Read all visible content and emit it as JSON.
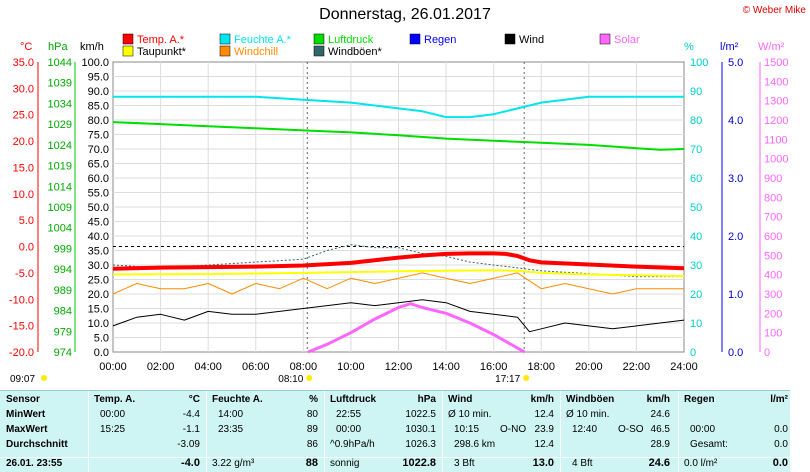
{
  "header": {
    "title": "Donnerstag, 26.01.2017",
    "copyright": "© Weber Mike"
  },
  "colors": {
    "temp": "#ff0000",
    "feuchte": "#00e5ee",
    "luftdruck": "#00dd00",
    "regen": "#0000ff",
    "wind": "#000000",
    "solar": "#ff66ff",
    "taupunkt": "#ffff00",
    "windchill": "#ff8c00",
    "windboeen": "#336666"
  },
  "legend": [
    {
      "key": "temp",
      "label": "Temp. A.*"
    },
    {
      "key": "feuchte",
      "label": "Feuchte A.*"
    },
    {
      "key": "luftdruck",
      "label": "Luftdruck"
    },
    {
      "key": "regen",
      "label": "Regen"
    },
    {
      "key": "wind",
      "label": "Wind"
    },
    {
      "key": "solar",
      "label": "Solar"
    },
    {
      "key": "taupunkt",
      "label": "Taupunkt*"
    },
    {
      "key": "windchill",
      "label": "Windchill"
    },
    {
      "key": "windboeen",
      "label": "Windböen*"
    }
  ],
  "axes": {
    "unit_c": "°C",
    "unit_hpa": "hPa",
    "unit_kmh": "km/h",
    "unit_pct": "%",
    "unit_lm2": "l/m²",
    "unit_wm2": "W/m²",
    "ticks_c": [
      "35.0",
      "30.0",
      "25.0",
      "20.0",
      "15.0",
      "10.0",
      "5.0",
      "0.0",
      "-5.0",
      "-10.0",
      "-15.0",
      "-20.0"
    ],
    "ticks_hpa": [
      "1044",
      "1039",
      "1034",
      "1029",
      "1024",
      "1019",
      "1014",
      "1009",
      "1004",
      "999",
      "994",
      "989",
      "984",
      "979",
      "974"
    ],
    "ticks_kmh": [
      "100.0",
      "95.0",
      "90.0",
      "85.0",
      "80.0",
      "75.0",
      "70.0",
      "65.0",
      "60.0",
      "55.0",
      "50.0",
      "45.0",
      "40.0",
      "35.0",
      "30.0",
      "25.0",
      "20.0",
      "15.0",
      "10.0",
      "5.0",
      "0.0"
    ],
    "ticks_pct": [
      "100",
      "90",
      "80",
      "70",
      "60",
      "50",
      "40",
      "30",
      "20",
      "10",
      "0"
    ],
    "ticks_lm2": [
      "5.0",
      "4.0",
      "3.0",
      "2.0",
      "1.0",
      "0.0"
    ],
    "ticks_wm2": [
      "1500",
      "1400",
      "1300",
      "1200",
      "1100",
      "1000",
      "900",
      "800",
      "700",
      "600",
      "500",
      "400",
      "300",
      "200",
      "100",
      "0"
    ],
    "ticks_time": [
      "00:00",
      "02:00",
      "04:00",
      "06:00",
      "08:00",
      "10:00",
      "12:00",
      "14:00",
      "16:00",
      "18:00",
      "20:00",
      "22:00",
      "24:00"
    ],
    "sunrise": "08:10",
    "sunset": "17:17",
    "moonrise": "09:07"
  },
  "chart_data": {
    "type": "line",
    "x_unit": "hour",
    "xlim": [
      0,
      24
    ],
    "ylim_kmh": [
      0,
      100
    ],
    "series": [
      {
        "key": "temp",
        "name": "Temp. A.*",
        "unit": "°C",
        "x": [
          0,
          2,
          4,
          6,
          8,
          10,
          12,
          13,
          14,
          15,
          16,
          16.5,
          17,
          17.5,
          18,
          20,
          22,
          24
        ],
        "y": [
          -4.2,
          -4.0,
          -3.9,
          -3.8,
          -3.6,
          -3.1,
          -2.1,
          -1.7,
          -1.4,
          -1.3,
          -1.3,
          -1.4,
          -1.8,
          -2.6,
          -3.0,
          -3.4,
          -3.8,
          -4.1
        ]
      },
      {
        "key": "taupunkt",
        "name": "Taupunkt*",
        "unit": "°C",
        "x": [
          0,
          4,
          8,
          12,
          16,
          17,
          18,
          20,
          24
        ],
        "y": [
          -5.3,
          -5.2,
          -5.0,
          -4.7,
          -4.5,
          -4.6,
          -5.0,
          -5.3,
          -5.6
        ]
      },
      {
        "key": "feuchte",
        "name": "Feuchte A.*",
        "unit": "%",
        "x": [
          0,
          2,
          4,
          6,
          8,
          10,
          12,
          13,
          14,
          15,
          16,
          17,
          18,
          20,
          22,
          23,
          24
        ],
        "y": [
          88,
          88,
          88,
          88,
          87,
          86,
          84,
          83,
          81,
          81,
          82,
          84,
          86,
          88,
          88,
          88,
          88
        ]
      },
      {
        "key": "luftdruck",
        "name": "Luftdruck",
        "unit": "hPa",
        "x": [
          0,
          2,
          4,
          6,
          8,
          10,
          12,
          14,
          16,
          18,
          20,
          22,
          23,
          24
        ],
        "y": [
          1029.5,
          1029,
          1028.5,
          1028,
          1027.5,
          1027,
          1026.3,
          1025.5,
          1025,
          1024.5,
          1024,
          1023.2,
          1022.8,
          1023
        ]
      },
      {
        "key": "windchill",
        "name": "Windchill",
        "unit": "°C",
        "x": [
          0,
          1,
          2,
          3,
          4,
          5,
          6,
          7,
          8,
          9,
          10,
          11,
          12,
          13,
          14,
          15,
          16,
          17,
          18,
          19,
          20,
          21,
          22,
          23,
          24
        ],
        "y": [
          -9,
          -7,
          -8,
          -8,
          -7,
          -9,
          -7,
          -8,
          -6,
          -8,
          -6,
          -7,
          -6,
          -5,
          -6,
          -7,
          -6,
          -5,
          -8,
          -7,
          -8,
          -9,
          -8,
          -8,
          -8
        ]
      },
      {
        "key": "wind",
        "name": "Wind",
        "unit": "km/h",
        "x": [
          0,
          1,
          2,
          3,
          4,
          5,
          6,
          7,
          8,
          9,
          10,
          11,
          12,
          13,
          14,
          15,
          16,
          17,
          17.5,
          18,
          19,
          20,
          21,
          22,
          23,
          24
        ],
        "y": [
          9,
          12,
          13,
          11,
          14,
          13,
          13,
          14,
          15,
          16,
          17,
          16,
          17,
          18,
          17,
          14,
          13,
          12,
          7,
          8,
          10,
          9,
          8,
          9,
          10,
          11
        ]
      },
      {
        "key": "windboeen",
        "name": "Windböen*",
        "unit": "km/h",
        "x": [
          0,
          2,
          4,
          6,
          8,
          9,
          10,
          11,
          12,
          13,
          14,
          15,
          16,
          17,
          18,
          20,
          22,
          24
        ],
        "y": [
          30,
          29,
          30,
          31,
          32,
          35,
          37,
          36,
          36,
          34,
          33,
          31,
          30,
          29,
          28,
          27,
          26,
          26
        ]
      },
      {
        "key": "solar",
        "name": "Solar",
        "unit": "W/m²",
        "x": [
          8.2,
          9,
          10,
          11,
          12,
          12.5,
          13,
          14,
          15,
          16,
          17,
          17.3
        ],
        "y": [
          0,
          40,
          100,
          170,
          230,
          250,
          230,
          200,
          150,
          90,
          20,
          0
        ]
      }
    ]
  },
  "table": {
    "row_labels": {
      "sensor": "Sensor",
      "min": "MinWert",
      "max": "MaxWert",
      "avg": "Durchschnitt",
      "now": "26.01. 23:55"
    },
    "temp": {
      "title": "Temp. A.",
      "unit": "°C",
      "min_t": "00:00",
      "min_v": "-4.4",
      "max_t": "15:25",
      "max_v": "-1.1",
      "avg_v": "-3.09",
      "now_v": "-4.0"
    },
    "feuchte": {
      "title": "Feuchte A.",
      "unit": "%",
      "min_t": "14:00",
      "min_v": "80",
      "max_t": "23:35",
      "max_v": "89",
      "avg_v": "86",
      "now_extra": "3.22 g/m³",
      "now_v": "88"
    },
    "luftdruck": {
      "title": "Luftdruck",
      "unit": "hPa",
      "min_t": "22:55",
      "min_v": "1022.5",
      "max_t": "00:00",
      "max_v": "1030.1",
      "avg_t": "^0.9hPa/h",
      "avg_v": "1026.3",
      "now_t": "sonnig",
      "now_v": "1022.8"
    },
    "wind": {
      "title": "Wind",
      "unit": "km/h",
      "min_t": "Ø 10 min.",
      "min_v": "12.4",
      "max_t": "10:15",
      "max_dir": "O-NO",
      "max_v": "23.9",
      "avg_t": "298.6 km",
      "avg_v": "12.4",
      "now_t": "3 Bft",
      "now_v": "13.0"
    },
    "boeen": {
      "title": "Windböen",
      "unit": "km/h",
      "min_t": "Ø 10 min.",
      "min_v": "24.6",
      "max_t": "12:40",
      "max_dir": "O-SO",
      "max_v": "46.5",
      "avg_v": "28.9",
      "now_t": "4 Bft",
      "now_v": "24.6"
    },
    "regen": {
      "title": "Regen",
      "unit": "l/m²",
      "max_t": "00:00",
      "max_v": "0.0",
      "avg_t": "Gesamt:",
      "avg_v": "0.0",
      "now_t": "0.0 l/m²",
      "now_v": "0.0"
    }
  }
}
